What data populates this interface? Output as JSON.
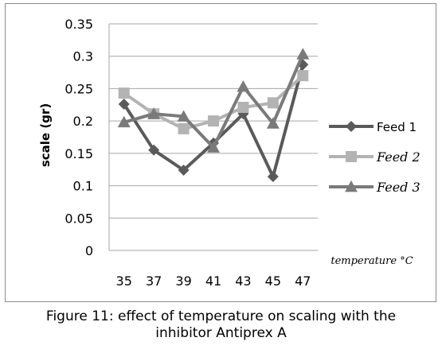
{
  "caption": {
    "line1": "Figure 11: effect of temperature on scaling with the",
    "line2": "inhibitor Antiprex A"
  },
  "chart_data": {
    "type": "line",
    "title": "",
    "xlabel": "temperature °C",
    "ylabel": "scale (gr)",
    "categories": [
      "35",
      "37",
      "39",
      "41",
      "43",
      "45",
      "47"
    ],
    "ylim": [
      0,
      0.35
    ],
    "yticks": [
      "0",
      "0.05",
      "0.1",
      "0.15",
      "0.2",
      "0.25",
      "0.3",
      "0.35"
    ],
    "grid": true,
    "legend_position": "right",
    "series": [
      {
        "name": "Feed 1",
        "color": "#5a5a5a",
        "marker": "diamond",
        "values": [
          0.226,
          0.155,
          0.124,
          0.166,
          0.211,
          0.114,
          0.287
        ]
      },
      {
        "name": "Feed 2",
        "color": "#b3b3b3",
        "marker": "square",
        "values": [
          0.243,
          0.211,
          0.188,
          0.2,
          0.221,
          0.228,
          0.27
        ]
      },
      {
        "name": "Feed 3",
        "color": "#7a7a7a",
        "marker": "triangle",
        "values": [
          0.198,
          0.211,
          0.207,
          0.159,
          0.253,
          0.196,
          0.303
        ]
      }
    ]
  }
}
